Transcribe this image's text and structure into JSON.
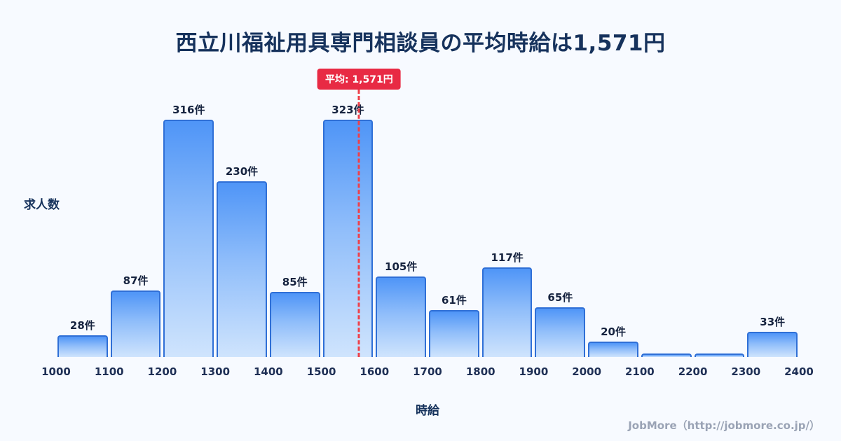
{
  "title": "西立川福祉用具専門相談員の平均時給は1,571円",
  "ylabel": "求人数",
  "xlabel": "時給",
  "average_badge": "平均: 1,571円",
  "footer": "JobMore（http://jobmore.co.jp/）",
  "colors": {
    "background": "#f7faff",
    "title_text": "#16325c",
    "bar_top": "#4f95f7",
    "bar_bottom": "#cfe4fd",
    "bar_border": "#2f6fd6",
    "average_line": "#ef4049",
    "average_badge_bg": "#e82a44",
    "footer_text": "#9aa3b5"
  },
  "chart_data": {
    "type": "bar",
    "title": "西立川福祉用具専門相談員の平均時給は1,571円",
    "xlabel": "時給",
    "ylabel": "求人数",
    "x_ticks": [
      1000,
      1100,
      1200,
      1300,
      1400,
      1500,
      1600,
      1700,
      1800,
      1900,
      2000,
      2100,
      2200,
      2300,
      2400
    ],
    "bin_edges": [
      1000,
      1100,
      1200,
      1300,
      1400,
      1500,
      1600,
      1700,
      1800,
      1900,
      2000,
      2100,
      2200,
      2300,
      2400
    ],
    "values": [
      28,
      87,
      316,
      230,
      85,
      323,
      105,
      61,
      117,
      65,
      20,
      5,
      5,
      33
    ],
    "labels": [
      "28件",
      "87件",
      "316件",
      "230件",
      "85件",
      "323件",
      "105件",
      "61件",
      "117件",
      "65件",
      "20件",
      "",
      "",
      "33件"
    ],
    "average": 1571,
    "average_label": "平均: 1,571円",
    "ylim": [
      0,
      330
    ],
    "grid": false,
    "legend": false
  }
}
